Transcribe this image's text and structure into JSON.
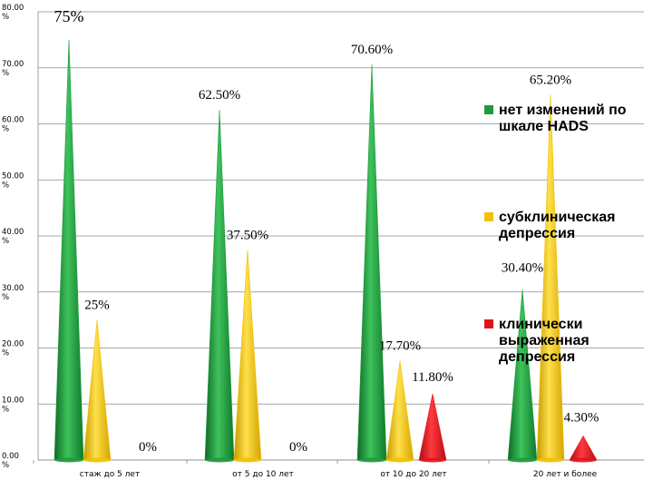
{
  "chart_data": {
    "type": "bar",
    "categories": [
      "стаж до 5 лет",
      "от 5 до 10 лет",
      "от 10 до 20 лет",
      "20 лет и более"
    ],
    "series": [
      {
        "name": "нет изменений по шкале HADS",
        "values": [
          75,
          62.5,
          70.6,
          30.4
        ],
        "labels": [
          "75%",
          "62.50%",
          "70.60%",
          "30.40%"
        ],
        "color": "#1e9a3c"
      },
      {
        "name": "субклиническая депрессия",
        "values": [
          25,
          37.5,
          17.7,
          65.2
        ],
        "labels": [
          "25%",
          "37.50%",
          "17.70%",
          "65.20%"
        ],
        "color": "#f2c200"
      },
      {
        "name": "клинически выраженная депрессия",
        "values": [
          0,
          0,
          11.8,
          4.3
        ],
        "labels": [
          "0%",
          "0%",
          "11.80%",
          "4.30%"
        ],
        "color": "#e3131b"
      }
    ],
    "legend_lines": [
      [
        "нет изменений по",
        "шкале HADS"
      ],
      [
        "субклиническая",
        "депрессия"
      ],
      [
        "клинически",
        "выраженная",
        "депрессия"
      ]
    ],
    "y_ticks": [
      {
        "value": 0,
        "label": [
          "0.00",
          "%"
        ]
      },
      {
        "value": 10,
        "label": [
          "10.00",
          "%"
        ]
      },
      {
        "value": 20,
        "label": [
          "20.00",
          "%"
        ]
      },
      {
        "value": 30,
        "label": [
          "30.00",
          "%"
        ]
      },
      {
        "value": 40,
        "label": [
          "40.00",
          "%"
        ]
      },
      {
        "value": 50,
        "label": [
          "50.00",
          "%"
        ]
      },
      {
        "value": 60,
        "label": [
          "60.00",
          "%"
        ]
      },
      {
        "value": 70,
        "label": [
          "70.00",
          "%"
        ]
      },
      {
        "value": 80,
        "label": [
          "80.00",
          "%"
        ]
      }
    ],
    "ylim": [
      0,
      80
    ],
    "grid": true,
    "legend_position": "right",
    "bar_shape": "cone"
  }
}
